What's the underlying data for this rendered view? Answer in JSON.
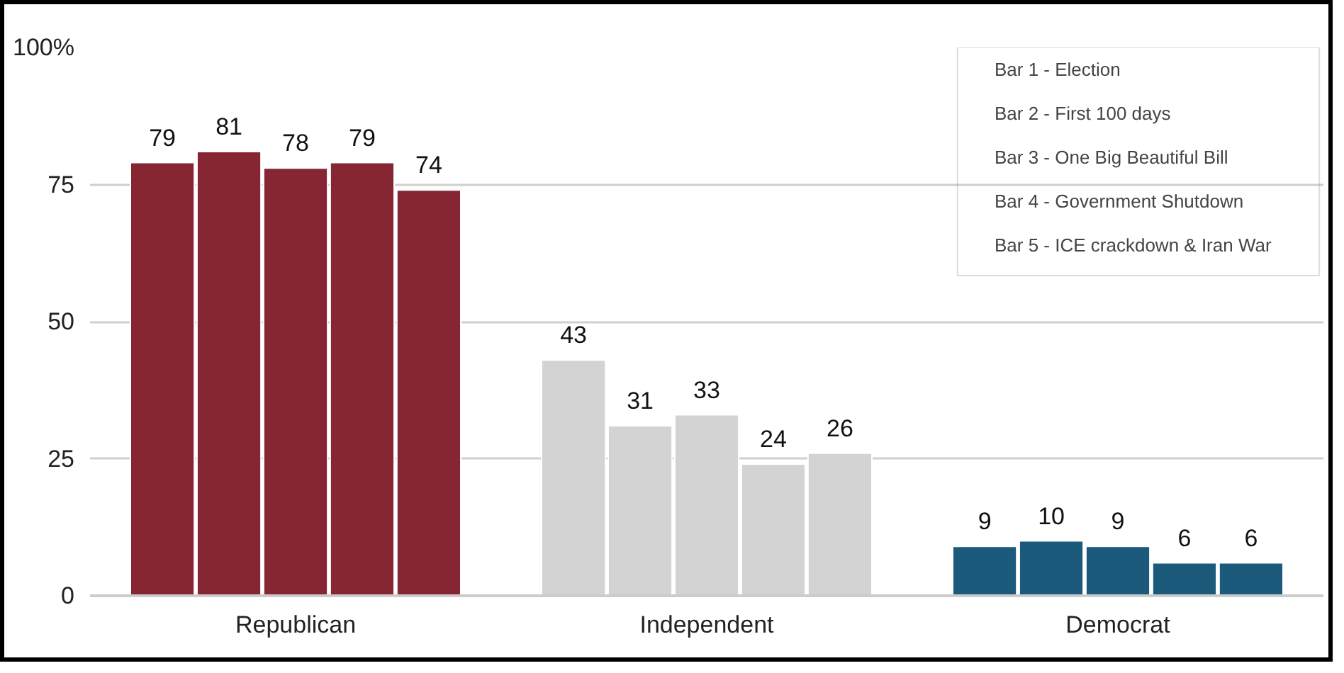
{
  "chart_data": {
    "type": "bar",
    "categories": [
      "Republican",
      "Independent",
      "Democrat"
    ],
    "series": [
      {
        "colors": [
          "#862633",
          "#d3d3d3",
          "#1b5a7a"
        ],
        "values": [
          79,
          43,
          9
        ]
      },
      {
        "colors": [
          "#862633",
          "#d3d3d3",
          "#1b5a7a"
        ],
        "values": [
          81,
          31,
          10
        ]
      },
      {
        "colors": [
          "#862633",
          "#d3d3d3",
          "#1b5a7a"
        ],
        "values": [
          78,
          33,
          9
        ]
      },
      {
        "colors": [
          "#862633",
          "#d3d3d3",
          "#1b5a7a"
        ],
        "values": [
          79,
          24,
          6
        ]
      },
      {
        "colors": [
          "#862633",
          "#d3d3d3",
          "#1b5a7a"
        ],
        "values": [
          74,
          26,
          6
        ]
      }
    ],
    "ylim": [
      0,
      100
    ],
    "yticks": [
      0,
      25,
      50,
      75,
      {
        "value": 100,
        "label": "100%"
      }
    ],
    "grid": "y",
    "data_labels": true,
    "annotations": [
      "Bar 1 - Election",
      "Bar 2 - First 100 days",
      "Bar 3 - One Big Beautiful Bill",
      "Bar 4 - Government Shutdown",
      "Bar 5 - ICE crackdown & Iran War"
    ]
  }
}
